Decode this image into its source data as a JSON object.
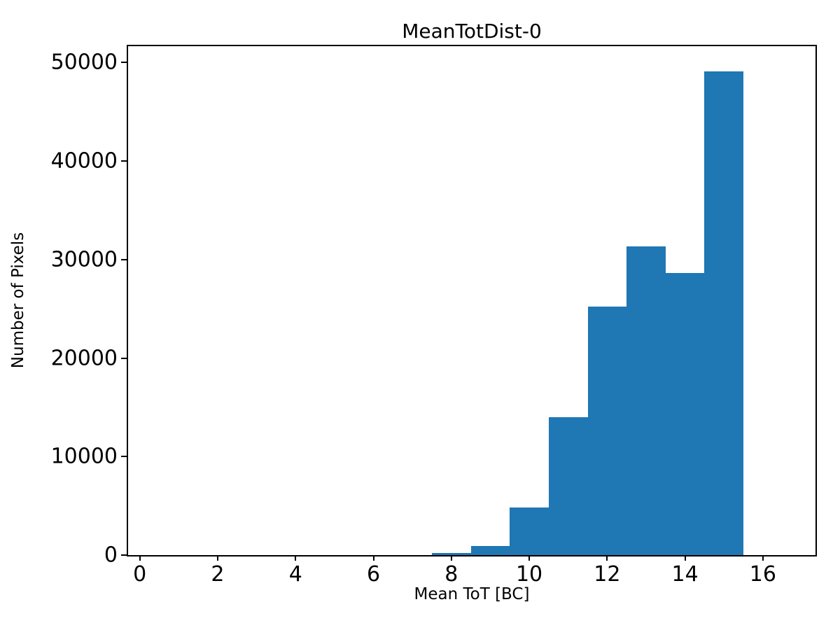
{
  "chart_data": {
    "type": "bar",
    "subtype": "histogram",
    "title": "MeanTotDist-0",
    "xlabel": "Mean ToT [BC]",
    "ylabel": "Number of Pixels",
    "bin_centers": [
      1,
      2,
      3,
      4,
      5,
      6,
      7,
      8,
      9,
      10,
      11,
      12,
      13,
      14,
      15,
      16
    ],
    "bin_width": 1,
    "values": [
      0,
      0,
      0,
      0,
      0,
      0,
      0,
      200,
      950,
      4800,
      14000,
      25250,
      31350,
      28650,
      49100,
      0
    ],
    "xticks": [
      0,
      2,
      4,
      6,
      8,
      10,
      12,
      14,
      16
    ],
    "yticks": [
      0,
      10000,
      20000,
      30000,
      40000,
      50000
    ],
    "xlim": [
      -0.3,
      17.35
    ],
    "ylim": [
      0,
      51670
    ],
    "grid": false,
    "legend": null,
    "bar_color": "#1f77b4",
    "axis_color": "#000000",
    "background_color": "#ffffff"
  }
}
